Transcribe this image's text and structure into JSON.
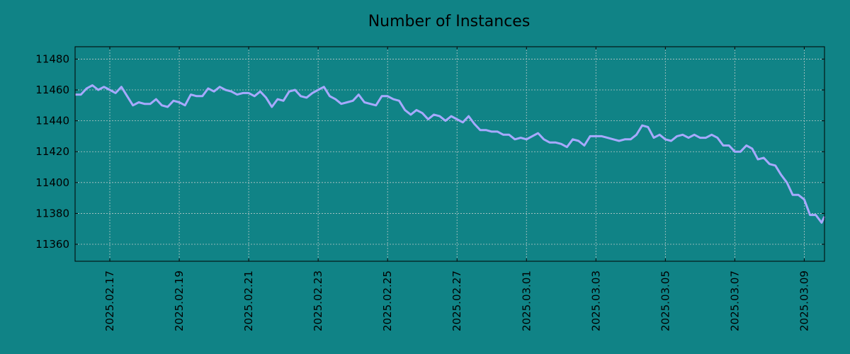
{
  "chart_data": {
    "type": "line",
    "title": "Number of Instances",
    "xlabel": "",
    "ylabel": "",
    "ylim": [
      11349,
      11488
    ],
    "grid": true,
    "line_color": "#a7a9ff",
    "background_color": "#108386",
    "x_tick_labels": [
      "2025.02.17",
      "2025.02.19",
      "2025.02.21",
      "2025.02.23",
      "2025.02.25",
      "2025.02.27",
      "2025.03.01",
      "2025.03.03",
      "2025.03.05",
      "2025.03.07",
      "2025.03.09"
    ],
    "x_range": [
      "2025-02-16T00:00",
      "2025-03-09T14:00"
    ],
    "y_ticks": [
      11360,
      11380,
      11400,
      11420,
      11440,
      11460,
      11480
    ],
    "series": [
      {
        "name": "",
        "x": [
          "2025-02-16T00:00",
          "2025-02-16T04:00",
          "2025-02-16T08:00",
          "2025-02-16T12:00",
          "2025-02-16T16:00",
          "2025-02-16T20:00",
          "2025-02-17T00:00",
          "2025-02-17T04:00",
          "2025-02-17T08:00",
          "2025-02-17T12:00",
          "2025-02-17T16:00",
          "2025-02-17T20:00",
          "2025-02-18T00:00",
          "2025-02-18T04:00",
          "2025-02-18T08:00",
          "2025-02-18T12:00",
          "2025-02-18T16:00",
          "2025-02-18T20:00",
          "2025-02-19T00:00",
          "2025-02-19T04:00",
          "2025-02-19T08:00",
          "2025-02-19T12:00",
          "2025-02-19T16:00",
          "2025-02-19T20:00",
          "2025-02-20T00:00",
          "2025-02-20T04:00",
          "2025-02-20T08:00",
          "2025-02-20T12:00",
          "2025-02-20T16:00",
          "2025-02-20T20:00",
          "2025-02-21T00:00",
          "2025-02-21T04:00",
          "2025-02-21T08:00",
          "2025-02-21T12:00",
          "2025-02-21T16:00",
          "2025-02-21T20:00",
          "2025-02-22T00:00",
          "2025-02-22T04:00",
          "2025-02-22T08:00",
          "2025-02-22T12:00",
          "2025-02-22T16:00",
          "2025-02-22T20:00",
          "2025-02-23T00:00",
          "2025-02-23T04:00",
          "2025-02-23T08:00",
          "2025-02-23T12:00",
          "2025-02-23T16:00",
          "2025-02-23T20:00",
          "2025-02-24T00:00",
          "2025-02-24T04:00",
          "2025-02-24T08:00",
          "2025-02-24T12:00",
          "2025-02-24T16:00",
          "2025-02-24T20:00",
          "2025-02-25T00:00",
          "2025-02-25T04:00",
          "2025-02-25T08:00",
          "2025-02-25T12:00",
          "2025-02-25T16:00",
          "2025-02-25T20:00",
          "2025-02-26T00:00",
          "2025-02-26T04:00",
          "2025-02-26T08:00",
          "2025-02-26T12:00",
          "2025-02-26T16:00",
          "2025-02-26T20:00",
          "2025-02-27T00:00",
          "2025-02-27T04:00",
          "2025-02-27T08:00",
          "2025-02-27T12:00",
          "2025-02-27T16:00",
          "2025-02-27T20:00",
          "2025-02-28T00:00",
          "2025-02-28T04:00",
          "2025-02-28T08:00",
          "2025-02-28T12:00",
          "2025-02-28T16:00",
          "2025-02-28T20:00",
          "2025-03-01T00:00",
          "2025-03-01T04:00",
          "2025-03-01T08:00",
          "2025-03-01T12:00",
          "2025-03-01T16:00",
          "2025-03-01T20:00",
          "2025-03-02T00:00",
          "2025-03-02T04:00",
          "2025-03-02T08:00",
          "2025-03-02T12:00",
          "2025-03-02T16:00",
          "2025-03-02T20:00",
          "2025-03-03T00:00",
          "2025-03-03T04:00",
          "2025-03-03T08:00",
          "2025-03-03T12:00",
          "2025-03-03T16:00",
          "2025-03-03T20:00",
          "2025-03-04T00:00",
          "2025-03-04T04:00",
          "2025-03-04T08:00",
          "2025-03-04T12:00",
          "2025-03-04T16:00",
          "2025-03-04T20:00",
          "2025-03-05T00:00",
          "2025-03-05T04:00",
          "2025-03-05T08:00",
          "2025-03-05T12:00",
          "2025-03-05T16:00",
          "2025-03-05T20:00",
          "2025-03-06T00:00",
          "2025-03-06T04:00",
          "2025-03-06T08:00",
          "2025-03-06T12:00",
          "2025-03-06T16:00",
          "2025-03-06T20:00",
          "2025-03-07T00:00",
          "2025-03-07T04:00",
          "2025-03-07T08:00",
          "2025-03-07T12:00",
          "2025-03-07T16:00",
          "2025-03-07T20:00",
          "2025-03-08T00:00",
          "2025-03-08T04:00",
          "2025-03-08T08:00",
          "2025-03-08T12:00",
          "2025-03-08T16:00",
          "2025-03-08T20:00",
          "2025-03-09T00:00",
          "2025-03-09T04:00",
          "2025-03-09T08:00",
          "2025-03-09T12:00",
          "2025-03-09T14:00"
        ],
        "values": [
          11457,
          11457,
          11461,
          11463,
          11460,
          11462,
          11460,
          11458,
          11462,
          11456,
          11450,
          11452,
          11451,
          11451,
          11454,
          11450,
          11449,
          11453,
          11452,
          11450,
          11457,
          11456,
          11456,
          11461,
          11459,
          11462,
          11460,
          11459,
          11457,
          11458,
          11458,
          11456,
          11459,
          11455,
          11449,
          11454,
          11453,
          11459,
          11460,
          11456,
          11455,
          11458,
          11460,
          11462,
          11456,
          11454,
          11451,
          11452,
          11453,
          11457,
          11452,
          11451,
          11450,
          11456,
          11456,
          11454,
          11453,
          11447,
          11444,
          11447,
          11445,
          11441,
          11444,
          11443,
          11440,
          11443,
          11441,
          11439,
          11443,
          11438,
          11434,
          11434,
          11433,
          11433,
          11431,
          11431,
          11428,
          11429,
          11428,
          11430,
          11432,
          11428,
          11426,
          11426,
          11425,
          11423,
          11428,
          11427,
          11424,
          11430,
          11430,
          11430,
          11429,
          11428,
          11427,
          11428,
          11428,
          11431,
          11437,
          11436,
          11429,
          11431,
          11428,
          11427,
          11430,
          11431,
          11429,
          11431,
          11429,
          11429,
          11431,
          11429,
          11424,
          11424,
          11420,
          11420,
          11424,
          11422,
          11415,
          11416,
          11412,
          11411,
          11405,
          11400,
          11392,
          11392,
          11389,
          11379,
          11379,
          11374,
          11378
        ]
      }
    ]
  }
}
